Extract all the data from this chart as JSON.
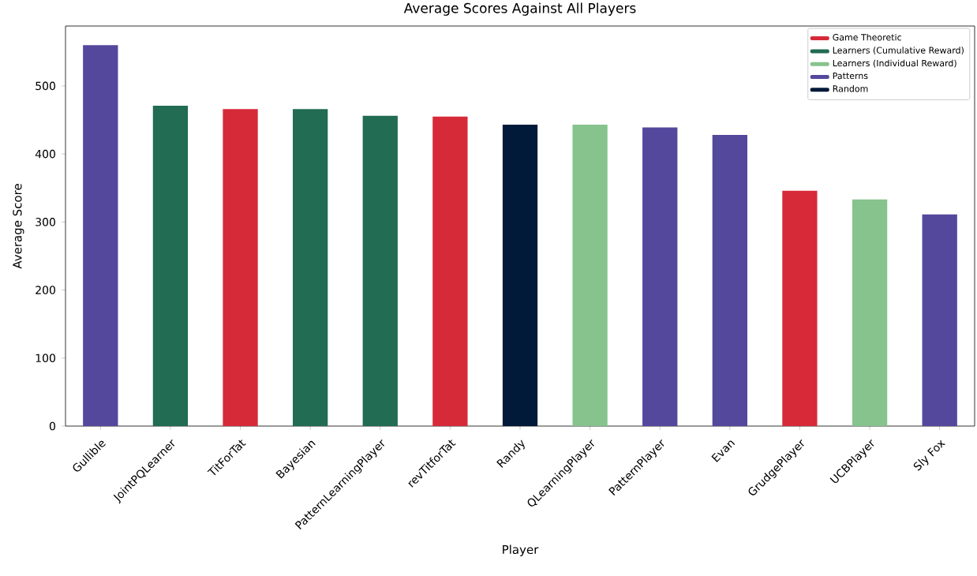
{
  "chart_data": {
    "type": "bar",
    "title": "Average Scores Against All Players",
    "xlabel": "Player",
    "ylabel": "Average Score",
    "categories": [
      "Gullible",
      "JointPQLearner",
      "TitForTat",
      "Bayesian",
      "PatternLearningPlayer",
      "revTitforTat",
      "Randy",
      "QLearningPlayer",
      "PatternPlayer",
      "Evan",
      "GrudgePlayer",
      "UCBPlayer",
      "Sly Fox"
    ],
    "series": [
      {
        "name": "Game Theoretic",
        "color": "#d62a38",
        "values": [
          null,
          null,
          466,
          null,
          null,
          455,
          null,
          null,
          null,
          null,
          346,
          null,
          null
        ]
      },
      {
        "name": "Learners (Cumulative Reward)",
        "color": "#216c52",
        "values": [
          null,
          471,
          null,
          466,
          456,
          null,
          null,
          null,
          null,
          null,
          null,
          null,
          null
        ]
      },
      {
        "name": "Learners (Individual Reward)",
        "color": "#86c38d",
        "values": [
          null,
          null,
          null,
          null,
          null,
          null,
          null,
          443,
          null,
          null,
          null,
          333,
          null
        ]
      },
      {
        "name": "Patterns",
        "color": "#53489c",
        "values": [
          560,
          null,
          null,
          null,
          null,
          null,
          null,
          null,
          439,
          428,
          null,
          null,
          311
        ]
      },
      {
        "name": "Random",
        "color": "#021a3a",
        "values": [
          null,
          null,
          null,
          null,
          null,
          null,
          443,
          null,
          null,
          null,
          null,
          null,
          null
        ]
      }
    ],
    "ylim": [
      0,
      588
    ],
    "yticks": [
      0,
      100,
      200,
      300,
      400,
      500
    ],
    "legend": "top right",
    "grid": false
  }
}
